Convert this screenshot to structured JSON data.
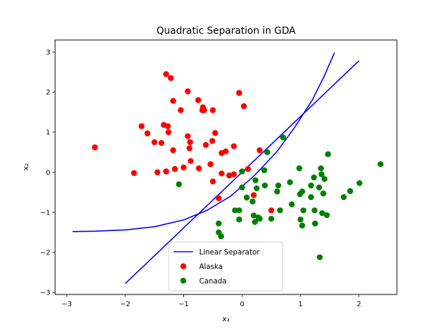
{
  "chart_data": {
    "type": "scatter",
    "title": "Quadratic Separation in GDA",
    "xlabel": "x₁",
    "ylabel": "x₂",
    "xlim": [
      -3.2,
      2.65
    ],
    "ylim": [
      -3.05,
      3.3
    ],
    "xticks": [
      -3,
      -2,
      -1,
      0,
      1,
      2
    ],
    "yticks": [
      -3,
      -2,
      -1,
      0,
      1,
      2,
      3
    ],
    "grid": false,
    "legend_position": "lower center",
    "series": [
      {
        "name": "Linear Separator",
        "kind": "line",
        "color": "#0000ff",
        "points": [
          [
            -2.0,
            -2.78
          ],
          [
            2.0,
            2.78
          ]
        ]
      },
      {
        "name": "",
        "kind": "line",
        "color": "#0000ff",
        "points": [
          [
            -2.9,
            -1.48
          ],
          [
            -2.5,
            -1.47
          ],
          [
            -2.0,
            -1.44
          ],
          [
            -1.5,
            -1.36
          ],
          [
            -1.0,
            -1.19
          ],
          [
            -0.6,
            -0.95
          ],
          [
            -0.2,
            -0.6
          ],
          [
            0.2,
            -0.1
          ],
          [
            0.6,
            0.52
          ],
          [
            0.9,
            1.12
          ],
          [
            1.2,
            1.8
          ],
          [
            1.4,
            2.38
          ],
          [
            1.58,
            2.98
          ]
        ]
      },
      {
        "name": "Alaska",
        "kind": "scatter",
        "color": "#ff0000",
        "points": [
          [
            -2.52,
            0.62
          ],
          [
            -1.85,
            -0.02
          ],
          [
            -1.72,
            1.15
          ],
          [
            -1.62,
            0.97
          ],
          [
            -1.5,
            0.75
          ],
          [
            -1.45,
            0.0
          ],
          [
            -1.38,
            0.73
          ],
          [
            -1.34,
            1.18
          ],
          [
            -1.3,
            0.02
          ],
          [
            -1.3,
            2.45
          ],
          [
            -1.27,
            1.15
          ],
          [
            -1.26,
            1.0
          ],
          [
            -1.22,
            2.35
          ],
          [
            -1.18,
            1.78
          ],
          [
            -1.18,
            0.55
          ],
          [
            -1.15,
            0.08
          ],
          [
            -1.05,
            1.55
          ],
          [
            -1.0,
            0.12
          ],
          [
            -0.93,
            2.02
          ],
          [
            -0.93,
            0.9
          ],
          [
            -0.9,
            0.6
          ],
          [
            -0.89,
            0.75
          ],
          [
            -0.88,
            0.28
          ],
          [
            -0.75,
            1.8
          ],
          [
            -0.74,
            0.1
          ],
          [
            -0.68,
            1.55
          ],
          [
            -0.67,
            1.62
          ],
          [
            -0.65,
            1.55
          ],
          [
            -0.62,
            0.68
          ],
          [
            -0.54,
            0.2
          ],
          [
            -0.51,
            0.78
          ],
          [
            -0.5,
            1.55
          ],
          [
            -0.5,
            -0.23
          ],
          [
            -0.46,
            0.98
          ],
          [
            -0.4,
            -0.65
          ],
          [
            -0.35,
            0.48
          ],
          [
            -0.35,
            -0.03
          ],
          [
            -0.28,
            0.52
          ],
          [
            -0.22,
            -0.08
          ],
          [
            -0.14,
            0.65
          ],
          [
            -0.14,
            -0.05
          ],
          [
            -0.05,
            1.98
          ],
          [
            0.03,
            1.65
          ],
          [
            0.1,
            0.08
          ],
          [
            0.2,
            -0.57
          ],
          [
            0.3,
            0.55
          ],
          [
            0.5,
            -0.95
          ]
        ]
      },
      {
        "name": "Canada",
        "kind": "scatter",
        "color": "#008000",
        "points": [
          [
            -1.08,
            -0.3
          ],
          [
            -0.4,
            -1.28
          ],
          [
            -0.4,
            -1.5
          ],
          [
            -0.36,
            -1.6
          ],
          [
            -0.12,
            -0.95
          ],
          [
            -0.05,
            -0.95
          ],
          [
            -0.05,
            -1.18
          ],
          [
            0.0,
            0.02
          ],
          [
            0.0,
            -0.38
          ],
          [
            0.08,
            -0.63
          ],
          [
            0.18,
            -0.73
          ],
          [
            0.2,
            -1.08
          ],
          [
            0.22,
            -1.24
          ],
          [
            0.23,
            -0.2
          ],
          [
            0.25,
            -0.4
          ],
          [
            0.28,
            -1.13
          ],
          [
            0.3,
            -1.16
          ],
          [
            0.38,
            0.05
          ],
          [
            0.39,
            -0.33
          ],
          [
            0.43,
            0.5
          ],
          [
            0.5,
            -1.16
          ],
          [
            0.6,
            -0.48
          ],
          [
            0.62,
            -0.33
          ],
          [
            0.65,
            -0.95
          ],
          [
            0.7,
            0.87
          ],
          [
            0.82,
            -0.25
          ],
          [
            0.85,
            -0.8
          ],
          [
            0.98,
            0.1
          ],
          [
            0.99,
            -0.55
          ],
          [
            1.0,
            -1.18
          ],
          [
            1.03,
            -0.48
          ],
          [
            1.03,
            -1.33
          ],
          [
            1.05,
            -0.95
          ],
          [
            1.18,
            -0.33
          ],
          [
            1.18,
            -0.62
          ],
          [
            1.23,
            -0.13
          ],
          [
            1.24,
            -0.95
          ],
          [
            1.25,
            -1.28
          ],
          [
            1.32,
            -0.38
          ],
          [
            1.33,
            -2.12
          ],
          [
            1.35,
            0.1
          ],
          [
            1.36,
            -0.05
          ],
          [
            1.37,
            -1.02
          ],
          [
            1.39,
            -0.53
          ],
          [
            1.41,
            -0.17
          ],
          [
            1.45,
            -1.07
          ],
          [
            1.47,
            0.45
          ],
          [
            1.74,
            -0.62
          ],
          [
            1.85,
            -0.47
          ],
          [
            2.01,
            -0.27
          ],
          [
            2.37,
            0.2
          ]
        ]
      }
    ]
  }
}
